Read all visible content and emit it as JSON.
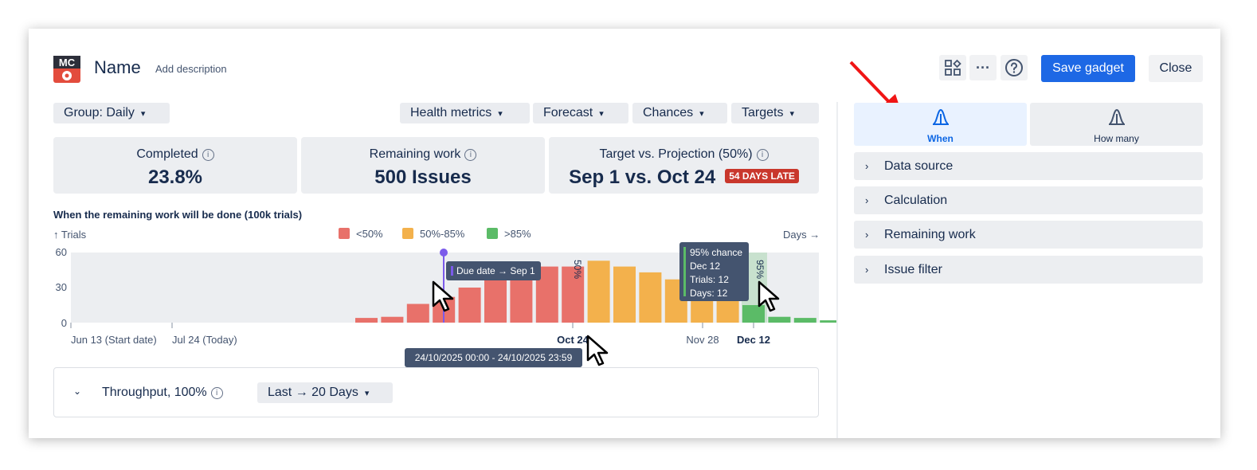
{
  "header": {
    "logo_text": "MC",
    "title": "Name",
    "add_description": "Add description",
    "icons": [
      "widgets-icon",
      "more-icon",
      "help-icon"
    ],
    "save_label": "Save gadget",
    "close_label": "Close"
  },
  "toolbar": {
    "group": "Group: Daily",
    "health": "Health metrics",
    "forecast": "Forecast",
    "chances": "Chances",
    "targets": "Targets"
  },
  "stats": {
    "completed": {
      "label": "Completed",
      "value": "23.8%"
    },
    "remaining": {
      "label": "Remaining work",
      "value": "500 Issues"
    },
    "target": {
      "label": "Target vs. Projection (50%)",
      "value": "Sep 1 vs. Oct 24",
      "badge": "54 DAYS LATE"
    }
  },
  "colors": {
    "red": "#e8716a",
    "orange": "#f3b14c",
    "green": "#5bbb67",
    "accent": "#1d68e5",
    "due": "#7b5bea"
  },
  "chart_data": {
    "type": "bar",
    "title": "When the remaining work will be done (100k trials)",
    "ylabel": "↑ Trials",
    "xlabel": "Days →",
    "ylim": [
      0,
      60
    ],
    "yticks": [
      "60",
      "30",
      "0"
    ],
    "legend": [
      {
        "name": "<50%",
        "color": "#e8716a"
      },
      {
        "name": "50%-85%",
        "color": "#f3b14c"
      },
      {
        "name": ">85%",
        "color": "#5bbb67"
      }
    ],
    "xticks": [
      "Jun 13 (Start date)",
      "Jul 24 (Today)",
      "Oct 24",
      "Nov 28",
      "Dec 12"
    ],
    "values": [
      4,
      5,
      16,
      22,
      30,
      40,
      45,
      48,
      48,
      53,
      48,
      43,
      37,
      30,
      25,
      15,
      5,
      4,
      2
    ],
    "groups": [
      "lt50",
      "lt50",
      "lt50",
      "lt50",
      "lt50",
      "lt50",
      "lt50",
      "lt50",
      "lt50",
      "mid",
      "mid",
      "mid",
      "mid",
      "mid",
      "mid",
      "gt85",
      "gt85",
      "gt85",
      "gt85"
    ],
    "markers": {
      "p50": "50%",
      "p95": "95%"
    },
    "due_label": "Due date → Sep 1",
    "range_tooltip": "24/10/2025 00:00 - 24/10/2025 23:59",
    "hover_tooltip": [
      "95% chance",
      "Dec 12",
      "Trials: 12",
      "Days: 12"
    ]
  },
  "throughput": {
    "label": "Throughput, 100%",
    "period": "Last → 20 Days"
  },
  "sidepanel": {
    "tabs": [
      {
        "label": "When"
      },
      {
        "label": "How many"
      }
    ],
    "sections": [
      "Data source",
      "Calculation",
      "Remaining work",
      "Issue filter"
    ]
  }
}
